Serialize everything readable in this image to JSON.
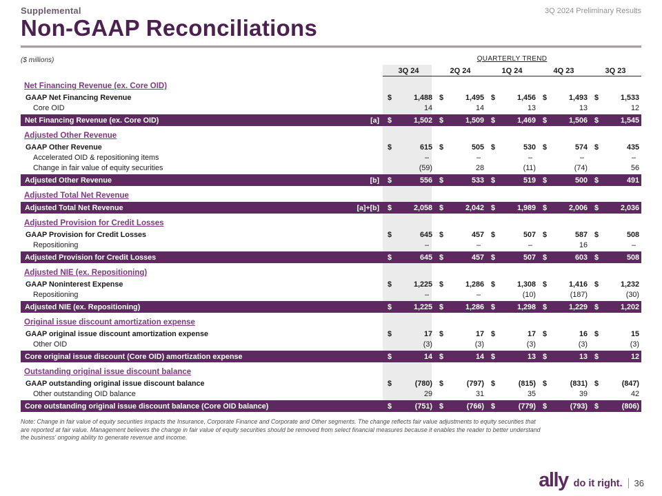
{
  "colors": {
    "brand_purple": "#5c2a5f",
    "heading_purple": "#7d3a82",
    "title_purple": "#4b2150",
    "column_shade": "#ebebeb"
  },
  "header": {
    "eyebrow": "Supplemental",
    "title": "Non-GAAP Reconciliations",
    "meta": "3Q 2024 Preliminary Results"
  },
  "table": {
    "units_label": "($ millions)",
    "trend_label": "QUARTERLY TREND",
    "columns": [
      "3Q 24",
      "2Q 24",
      "1Q 24",
      "4Q 23",
      "3Q 23"
    ],
    "highlighted_column": "3Q 24",
    "sections": [
      {
        "heading": "Net Financing Revenue (ex. Core OID)",
        "rows": [
          {
            "label": "GAAP Net Financing Revenue",
            "bold": true,
            "dollar": true,
            "values": [
              "1,488",
              "1,495",
              "1,456",
              "1,493",
              "1,533"
            ]
          },
          {
            "label": "Core OID",
            "indent": true,
            "values": [
              "14",
              "14",
              "13",
              "13",
              "12"
            ]
          },
          {
            "label": "Net Financing Revenue (ex. Core OID)",
            "type": "total",
            "tag": "[a]",
            "dollar": true,
            "values": [
              "1,502",
              "1,509",
              "1,469",
              "1,506",
              "1,545"
            ]
          }
        ]
      },
      {
        "heading": "Adjusted Other Revenue",
        "rows": [
          {
            "label": "GAAP Other Revenue",
            "bold": true,
            "dollar": true,
            "values": [
              "615",
              "505",
              "530",
              "574",
              "435"
            ]
          },
          {
            "label": "Accelerated OID & repositioning items",
            "indent": true,
            "values": [
              "–",
              "–",
              "–",
              "–",
              "–"
            ]
          },
          {
            "label": "Change in fair value of equity securities",
            "indent": true,
            "values": [
              "(59)",
              "28",
              "(11)",
              "(74)",
              "56"
            ]
          },
          {
            "label": "Adjusted Other Revenue",
            "type": "total",
            "tag": "[b]",
            "dollar": true,
            "values": [
              "556",
              "533",
              "519",
              "500",
              "491"
            ]
          }
        ]
      },
      {
        "heading": "Adjusted Total Net Revenue",
        "rows": [
          {
            "label": "Adjusted Total Net Revenue",
            "type": "total",
            "tag": "[a]+[b]",
            "dollar": true,
            "values": [
              "2,058",
              "2,042",
              "1,989",
              "2,006",
              "2,036"
            ]
          }
        ]
      },
      {
        "heading": "Adjusted Provision for Credit Losses",
        "rows": [
          {
            "label": "GAAP Provision for Credit Losses",
            "bold": true,
            "dollar": true,
            "values": [
              "645",
              "457",
              "507",
              "587",
              "508"
            ]
          },
          {
            "label": "Repositioning",
            "indent": true,
            "values": [
              "–",
              "–",
              "–",
              "16",
              "–"
            ]
          },
          {
            "label": "Adjusted Provision for Credit Losses",
            "type": "total",
            "dollar": true,
            "values": [
              "645",
              "457",
              "507",
              "603",
              "508"
            ]
          }
        ]
      },
      {
        "heading": "Adjusted NIE (ex. Repositioning)",
        "rows": [
          {
            "label": "GAAP Noninterest Expense",
            "bold": true,
            "dollar": true,
            "values": [
              "1,225",
              "1,286",
              "1,308",
              "1,416",
              "1,232"
            ]
          },
          {
            "label": "Repositioning",
            "indent": true,
            "values": [
              "–",
              "–",
              "(10)",
              "(187)",
              "(30)"
            ]
          },
          {
            "label": "Adjusted NIE (ex. Repositioning)",
            "type": "total",
            "dollar": true,
            "values": [
              "1,225",
              "1,286",
              "1,298",
              "1,229",
              "1,202"
            ]
          }
        ]
      },
      {
        "heading": "Original issue discount amortization expense",
        "rows": [
          {
            "label": "GAAP original issue discount amortization expense",
            "bold": true,
            "dollar": true,
            "values": [
              "17",
              "17",
              "17",
              "16",
              "15"
            ]
          },
          {
            "label": "Other OID",
            "indent": true,
            "values": [
              "(3)",
              "(3)",
              "(3)",
              "(3)",
              "(3)"
            ]
          },
          {
            "label": "Core original issue discount (Core OID) amortization expense",
            "type": "total",
            "dollar": true,
            "values": [
              "14",
              "14",
              "13",
              "13",
              "12"
            ]
          }
        ]
      },
      {
        "heading": "Outstanding original issue discount balance",
        "rows": [
          {
            "label": "GAAP outstanding original issue discount balance",
            "bold": true,
            "dollar": true,
            "values": [
              "(780)",
              "(797)",
              "(815)",
              "(831)",
              "(847)"
            ]
          },
          {
            "label": "Other outstanding OID balance",
            "indent": true,
            "values": [
              "29",
              "31",
              "35",
              "39",
              "42"
            ]
          },
          {
            "label": "Core outstanding original issue discount balance (Core OID balance)",
            "type": "total",
            "dollar": true,
            "values": [
              "(751)",
              "(766)",
              "(779)",
              "(793)",
              "(806)"
            ]
          }
        ]
      }
    ]
  },
  "footnote": "Note: Change in fair value of equity securities impacts the Insurance, Corporate Finance and Corporate and Other segments. The change reflects fair value adjustments to equity securities that are reported at fair value. Management believes the change in fair value of equity securities should be removed from select financial measures because it enables the reader to better understand the business' ongoing ability to generate revenue and income.",
  "footer": {
    "logo_text": "ally",
    "tagline": "do it right.",
    "page_number": "36"
  }
}
